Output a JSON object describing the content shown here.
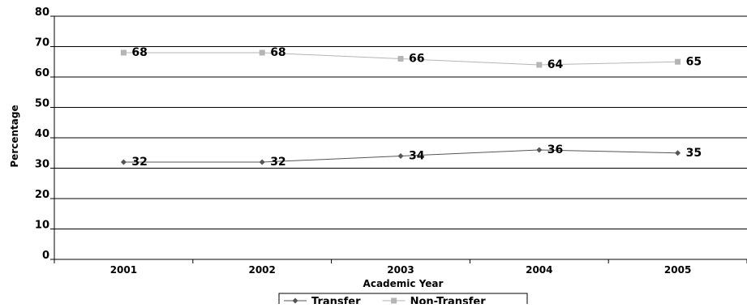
{
  "chart_data": {
    "type": "line",
    "title": "",
    "xlabel": "Academic Year",
    "ylabel": "Percentage",
    "categories": [
      "2001",
      "2002",
      "2003",
      "2004",
      "2005"
    ],
    "ylim": [
      0,
      80
    ],
    "yticks": [
      "0",
      "10",
      "20",
      "30",
      "40",
      "50",
      "60",
      "70",
      "80"
    ],
    "grid": true,
    "legend_position": "bottom",
    "series": [
      {
        "name": "Transfer",
        "values": [
          32,
          32,
          34,
          36,
          35
        ],
        "color": "#555555",
        "marker": "diamond"
      },
      {
        "name": "Non-Transfer",
        "values": [
          68,
          68,
          66,
          64,
          65
        ],
        "color": "#b5b5b5",
        "marker": "square"
      }
    ]
  }
}
